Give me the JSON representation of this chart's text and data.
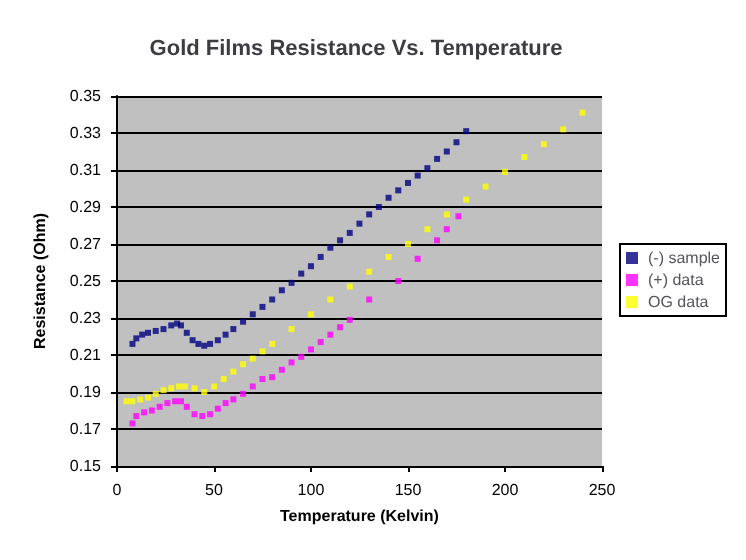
{
  "chart_data": {
    "type": "scatter",
    "title": "Gold Films Resistance Vs. Temperature",
    "xlabel": "Temperature (Kelvin)",
    "ylabel": "Resistance (Ohm)",
    "xlim": [
      0,
      250
    ],
    "xticks": [
      0,
      50,
      100,
      150,
      200,
      250
    ],
    "ylim": [
      0.15,
      0.35
    ],
    "yticks": [
      0.15,
      0.17,
      0.19,
      0.21,
      0.23,
      0.25,
      0.27,
      0.29,
      0.31,
      0.33,
      0.35
    ],
    "grid": "y",
    "legend": "right",
    "marker": "square",
    "series": [
      {
        "name": "(-) sample",
        "color": "#000080",
        "x": [
          8,
          10,
          13,
          16,
          20,
          24,
          28,
          31,
          33,
          36,
          39,
          42,
          45,
          48,
          52,
          56,
          60,
          65,
          70,
          75,
          80,
          85,
          90,
          95,
          100,
          105,
          110,
          115,
          120,
          125,
          130,
          135,
          140,
          145,
          150,
          155,
          160,
          165,
          170,
          175,
          180
        ],
        "values": [
          0.216,
          0.219,
          0.221,
          0.222,
          0.223,
          0.224,
          0.226,
          0.227,
          0.226,
          0.222,
          0.218,
          0.216,
          0.215,
          0.216,
          0.218,
          0.221,
          0.224,
          0.228,
          0.232,
          0.236,
          0.24,
          0.245,
          0.249,
          0.254,
          0.258,
          0.263,
          0.268,
          0.272,
          0.276,
          0.281,
          0.286,
          0.29,
          0.295,
          0.299,
          0.303,
          0.307,
          0.311,
          0.316,
          0.32,
          0.325,
          0.331
        ]
      },
      {
        "name": "(+) data",
        "color": "#ff00ff",
        "x": [
          8,
          10,
          14,
          18,
          22,
          26,
          30,
          33,
          36,
          40,
          44,
          48,
          52,
          56,
          60,
          65,
          70,
          75,
          80,
          85,
          90,
          95,
          100,
          105,
          110,
          115,
          120,
          130,
          145,
          155,
          165,
          170,
          176
        ],
        "values": [
          0.173,
          0.177,
          0.179,
          0.18,
          0.182,
          0.184,
          0.185,
          0.185,
          0.182,
          0.178,
          0.177,
          0.178,
          0.181,
          0.184,
          0.186,
          0.189,
          0.193,
          0.197,
          0.198,
          0.202,
          0.206,
          0.209,
          0.213,
          0.217,
          0.221,
          0.225,
          0.229,
          0.24,
          0.25,
          0.262,
          0.272,
          0.278,
          0.285
        ]
      },
      {
        "name": "OG data",
        "color": "#ffff00",
        "x": [
          5,
          8,
          12,
          16,
          20,
          24,
          28,
          32,
          35,
          40,
          45,
          50,
          55,
          60,
          65,
          70,
          75,
          80,
          90,
          100,
          110,
          120,
          130,
          140,
          150,
          160,
          170,
          180,
          190,
          200,
          210,
          220,
          230,
          240
        ],
        "values": [
          0.185,
          0.185,
          0.186,
          0.187,
          0.189,
          0.191,
          0.192,
          0.193,
          0.193,
          0.192,
          0.19,
          0.193,
          0.197,
          0.201,
          0.205,
          0.208,
          0.212,
          0.216,
          0.224,
          0.232,
          0.24,
          0.247,
          0.255,
          0.263,
          0.27,
          0.278,
          0.286,
          0.294,
          0.301,
          0.309,
          0.317,
          0.324,
          0.332,
          0.341
        ]
      }
    ]
  }
}
